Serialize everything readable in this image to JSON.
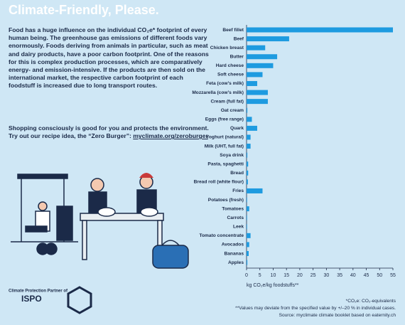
{
  "header": {
    "title": "Climate-Friendly, Please."
  },
  "text": {
    "paragraph1": "Food has a huge influence on the individual CO₂e* footprint of every human being. The greenhouse gas emissions of different foods vary enormously. Foods deriving from animals in particular, such as meat and dairy products, have a poor carbon footprint. One of the reasons for this is complex production processes, which are comparatively energy- and emission-intensive. If the products are then sold on the international market, the respective carbon footprint of each foodstuff is increased due to long transport routes.",
    "paragraph2": "Shopping consciously is good for you and protects the environment. Try out our recipe idea, the “Zero Burger”: ",
    "link": "myclimate.org/zeroburger"
  },
  "chart_data": {
    "type": "bar",
    "orientation": "horizontal",
    "categories": [
      "Beef fillet",
      "Beef",
      "Chicken breast",
      "Butter",
      "Hard cheese",
      "Soft cheese",
      "Feta (cow’s milk)",
      "Mozzarella (cow’s milk)",
      "Cream (full fat)",
      "Oat cream",
      "Eggs (free range)",
      "Quark",
      "Yoghurt (natural)",
      "Milk (UHT, full fat)",
      "Soya drink",
      "Pasta, spaghetti",
      "Bread",
      "Bread roll (white flour)",
      "Fries",
      "Potatoes (fresh)",
      "Tomatoes",
      "Carrots",
      "Leek",
      "Tomato concentrate",
      "Avocados",
      "Bananas",
      "Apples"
    ],
    "values": [
      55,
      16,
      7,
      11.5,
      10,
      6,
      4,
      8,
      8,
      0.3,
      2,
      4,
      1.5,
      1.5,
      0.3,
      0.6,
      0.6,
      0.5,
      6,
      0.2,
      1,
      0.2,
      0.2,
      1.5,
      1,
      0.8,
      0.3
    ],
    "color": "#1e9be0",
    "xlim": [
      0,
      55
    ],
    "xticks": [
      0,
      5,
      10,
      15,
      20,
      25,
      30,
      35,
      40,
      45,
      50,
      55
    ],
    "xlabel": "kg CO₂e/kg foodstuffs**"
  },
  "footer": {
    "partner": "Climate Protection Partner of",
    "brand": "ISPO",
    "notes": [
      "*CO₂e: CO₂-equivalents",
      "**Values may deviate from the specified value by +/–20 % in individual cases.",
      "Source: myclimate climate booklet based on eaternity.ch"
    ]
  }
}
